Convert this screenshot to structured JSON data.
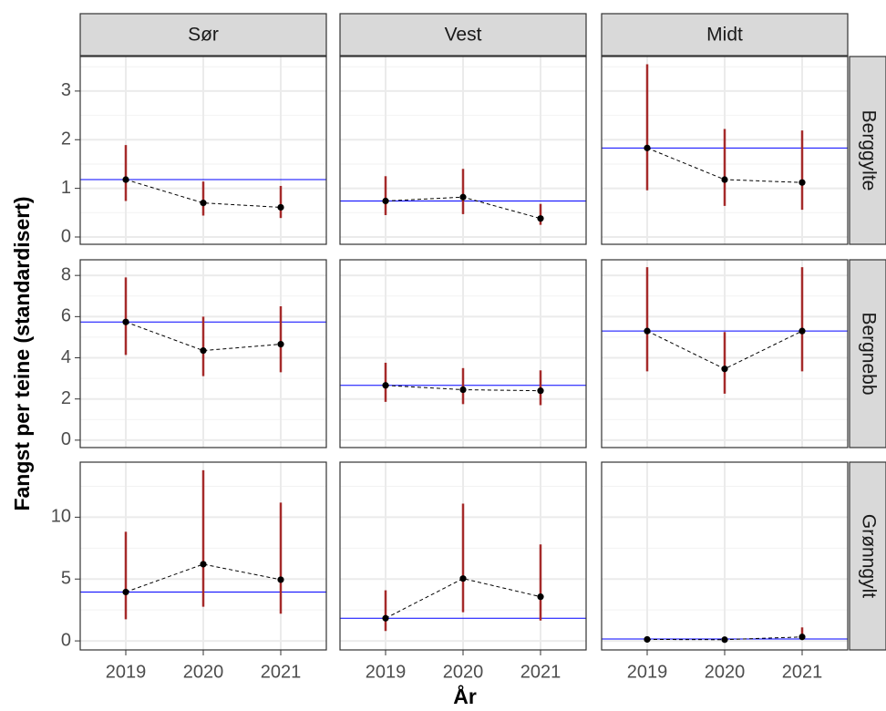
{
  "x_label": "År",
  "y_label": "Fangst per teine (standardisert)",
  "columns": [
    "Sør",
    "Vest",
    "Midt"
  ],
  "categories": [
    "2019",
    "2020",
    "2021"
  ],
  "colors": {
    "interval": "#a52a2a",
    "reference": "#0000ff",
    "point": "#000000",
    "line": "#000000"
  },
  "grid": true,
  "chart_data": [
    {
      "type": "pointrange",
      "row": "Berggylte",
      "ylim": [
        -0.15,
        3.71
      ],
      "yticks": [
        0,
        1,
        2,
        3
      ],
      "panels": [
        {
          "values": [
            1.18,
            0.7,
            0.61
          ],
          "lower": [
            0.74,
            0.44,
            0.39
          ],
          "upper": [
            1.89,
            1.14,
            1.05
          ],
          "reference": 1.18
        },
        {
          "values": [
            0.74,
            0.82,
            0.38
          ],
          "lower": [
            0.45,
            0.47,
            0.25
          ],
          "upper": [
            1.25,
            1.4,
            0.68
          ],
          "reference": 0.74
        },
        {
          "values": [
            1.83,
            1.18,
            1.12
          ],
          "lower": [
            0.96,
            0.64,
            0.56
          ],
          "upper": [
            3.55,
            2.22,
            2.19
          ],
          "reference": 1.83
        }
      ]
    },
    {
      "type": "pointrange",
      "row": "Bergnebb",
      "ylim": [
        -0.36,
        8.76
      ],
      "yticks": [
        0,
        2,
        4,
        6,
        8
      ],
      "panels": [
        {
          "values": [
            5.74,
            4.35,
            4.66
          ],
          "lower": [
            4.14,
            3.11,
            3.3
          ],
          "upper": [
            7.9,
            6.0,
            6.5
          ],
          "reference": 5.74
        },
        {
          "values": [
            2.66,
            2.45,
            2.4
          ],
          "lower": [
            1.86,
            1.75,
            1.7
          ],
          "upper": [
            3.76,
            3.5,
            3.39
          ],
          "reference": 2.66
        },
        {
          "values": [
            5.3,
            3.46,
            5.3
          ],
          "lower": [
            3.34,
            2.26,
            3.34
          ],
          "upper": [
            8.4,
            5.25,
            8.4
          ],
          "reference": 5.3
        }
      ]
    },
    {
      "type": "pointrange",
      "row": "Grønngylt",
      "ylim": [
        -0.73,
        14.45
      ],
      "yticks": [
        0,
        5,
        10
      ],
      "panels": [
        {
          "values": [
            3.95,
            6.2,
            4.95
          ],
          "lower": [
            1.75,
            2.76,
            2.2
          ],
          "upper": [
            8.82,
            13.8,
            11.18
          ],
          "reference": 3.95
        },
        {
          "values": [
            1.83,
            5.04,
            3.57
          ],
          "lower": [
            0.8,
            2.32,
            1.65
          ],
          "upper": [
            4.09,
            11.1,
            7.8
          ],
          "reference": 1.83
        },
        {
          "values": [
            0.12,
            0.1,
            0.32
          ],
          "lower": [
            0.02,
            0.03,
            0.1
          ],
          "upper": [
            0.25,
            0.2,
            1.09
          ],
          "reference": 0.15
        }
      ]
    }
  ]
}
